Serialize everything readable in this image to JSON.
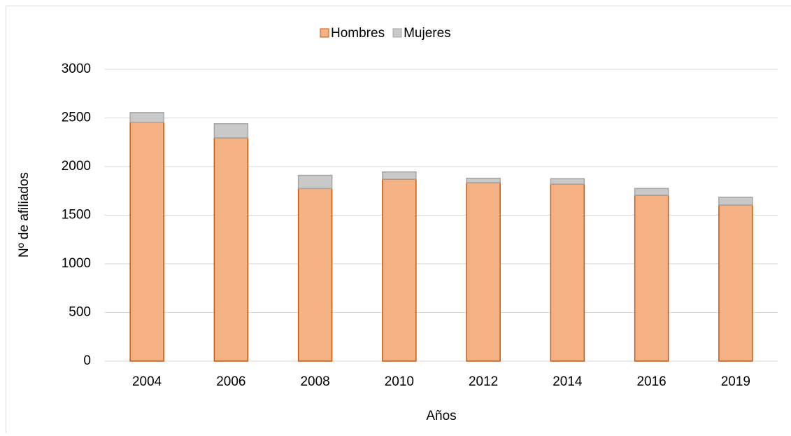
{
  "chart_data": {
    "type": "stacked_bar",
    "y_label": "Nº de afiliados",
    "x_label": "Años",
    "categories": [
      "2004",
      "2006",
      "2008",
      "2010",
      "2012",
      "2014",
      "2016",
      "2019"
    ],
    "series": [
      {
        "name": "Hombres",
        "color": "#f4b183",
        "edge": "#c55a11",
        "values": [
          2455,
          2295,
          1775,
          1870,
          1835,
          1820,
          1705,
          1605
        ]
      },
      {
        "name": "Mujeres",
        "color": "#c9c9c9",
        "edge": "#a5a5a5",
        "values": [
          100,
          145,
          135,
          75,
          45,
          55,
          70,
          80
        ]
      }
    ],
    "ylim": [
      0,
      3000
    ],
    "yticks": [
      0,
      500,
      1000,
      1500,
      2000,
      2500,
      3000
    ],
    "grid": true,
    "legend": "top"
  }
}
